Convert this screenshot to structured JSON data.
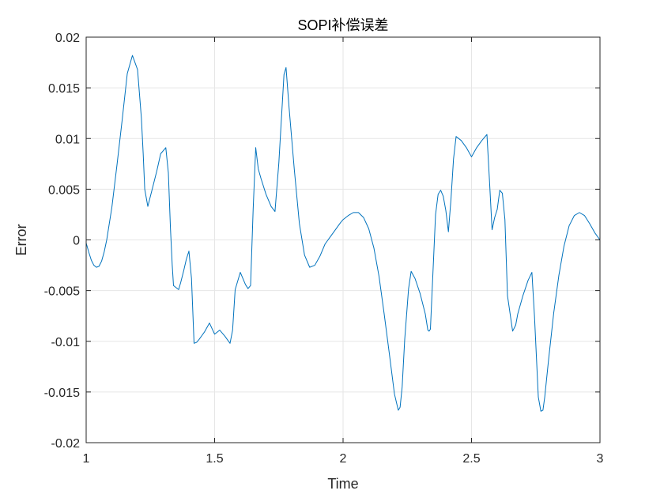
{
  "chart_data": {
    "type": "line",
    "title": "SOPI补偿误差",
    "xlabel": "Time",
    "ylabel": "Error",
    "xlim": [
      1,
      3
    ],
    "ylim": [
      -0.02,
      0.02
    ],
    "grid": true,
    "xticks": [
      1,
      1.5,
      2,
      2.5,
      3
    ],
    "xtick_labels": [
      "1",
      "1.5",
      "2",
      "2.5",
      "3"
    ],
    "yticks": [
      -0.02,
      -0.015,
      -0.01,
      -0.005,
      0,
      0.005,
      0.01,
      0.015,
      0.02
    ],
    "ytick_labels": [
      "-0.02",
      "-0.015",
      "-0.01",
      "-0.005",
      "0",
      "0.005",
      "0.01",
      "0.015",
      "0.02"
    ],
    "series_color": "#0072bd",
    "series": [
      {
        "x": [
          1.0,
          1.01,
          1.02,
          1.03,
          1.04,
          1.05,
          1.06,
          1.07,
          1.08,
          1.09,
          1.1,
          1.12,
          1.14,
          1.16,
          1.18,
          1.2,
          1.215,
          1.222,
          1.228,
          1.24,
          1.255,
          1.262,
          1.275,
          1.29,
          1.31,
          1.32,
          1.328,
          1.335,
          1.34,
          1.36,
          1.368,
          1.38,
          1.39,
          1.4,
          1.41,
          1.42,
          1.43,
          1.44,
          1.46,
          1.48,
          1.5,
          1.52,
          1.54,
          1.56,
          1.57,
          1.58,
          1.6,
          1.62,
          1.63,
          1.64,
          1.65,
          1.66,
          1.67,
          1.68,
          1.7,
          1.72,
          1.735,
          1.75,
          1.77,
          1.778,
          1.79,
          1.81,
          1.83,
          1.85,
          1.87,
          1.89,
          1.91,
          1.93,
          1.95,
          1.97,
          1.99,
          2.0,
          2.02,
          2.04,
          2.06,
          2.08,
          2.1,
          2.12,
          2.14,
          2.16,
          2.18,
          2.2,
          2.215,
          2.222,
          2.23,
          2.24,
          2.255,
          2.265,
          2.28,
          2.3,
          2.32,
          2.33,
          2.335,
          2.34,
          2.36,
          2.37,
          2.38,
          2.39,
          2.4,
          2.41,
          2.42,
          2.43,
          2.44,
          2.46,
          2.48,
          2.5,
          2.52,
          2.54,
          2.56,
          2.57,
          2.58,
          2.59,
          2.6,
          2.61,
          2.62,
          2.63,
          2.64,
          2.66,
          2.672,
          2.68,
          2.7,
          2.72,
          2.735,
          2.745,
          2.76,
          2.77,
          2.778,
          2.785,
          2.8,
          2.82,
          2.84,
          2.86,
          2.88,
          2.9,
          2.92,
          2.94,
          2.96,
          2.98,
          3.0
        ],
        "y": [
          -0.0003,
          -0.0012,
          -0.002,
          -0.0025,
          -0.0027,
          -0.0026,
          -0.0021,
          -0.0012,
          0.0,
          0.0016,
          0.0032,
          0.0074,
          0.0118,
          0.0164,
          0.0182,
          0.0168,
          0.012,
          0.0085,
          0.005,
          0.0033,
          0.0048,
          0.0055,
          0.0068,
          0.0085,
          0.0091,
          0.0066,
          0.0012,
          -0.0025,
          -0.0045,
          -0.0049,
          -0.0042,
          -0.003,
          -0.0019,
          -0.0011,
          -0.0038,
          -0.0102,
          -0.0101,
          -0.0098,
          -0.0091,
          -0.0082,
          -0.0093,
          -0.0089,
          -0.0095,
          -0.0102,
          -0.0089,
          -0.0049,
          -0.0032,
          -0.0044,
          -0.0048,
          -0.0045,
          0.003,
          0.0091,
          0.007,
          0.0061,
          0.0045,
          0.0033,
          0.0028,
          0.0076,
          0.0163,
          0.017,
          0.013,
          0.007,
          0.0016,
          -0.0015,
          -0.0027,
          -0.0025,
          -0.0016,
          -0.0004,
          0.0003,
          0.001,
          0.0017,
          0.002,
          0.0024,
          0.0027,
          0.0027,
          0.0022,
          0.0011,
          -0.0008,
          -0.0036,
          -0.0073,
          -0.0112,
          -0.0152,
          -0.0168,
          -0.0165,
          -0.0145,
          -0.0098,
          -0.0048,
          -0.0031,
          -0.0038,
          -0.0053,
          -0.0073,
          -0.0089,
          -0.009,
          -0.0088,
          0.0025,
          0.0045,
          0.0049,
          0.0043,
          0.0029,
          0.0008,
          0.004,
          0.008,
          0.0102,
          0.0098,
          0.0091,
          0.0082,
          0.0091,
          0.0098,
          0.0104,
          0.0058,
          0.001,
          0.0022,
          0.003,
          0.0049,
          0.0046,
          0.002,
          -0.0055,
          -0.009,
          -0.0084,
          -0.0073,
          -0.0055,
          -0.004,
          -0.0032,
          -0.0075,
          -0.0155,
          -0.0169,
          -0.0168,
          -0.0155,
          -0.0118,
          -0.0072,
          -0.0035,
          -0.0006,
          0.0014,
          0.0024,
          0.0027,
          0.0024,
          0.0016,
          0.0007,
          0.0
        ]
      }
    ]
  }
}
